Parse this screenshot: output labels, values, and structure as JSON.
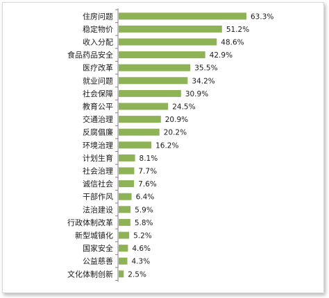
{
  "chart_data": {
    "type": "bar",
    "orientation": "horizontal",
    "categories": [
      "住房问题",
      "稳定物价",
      "收入分配",
      "食品药品安全",
      "医疗改革",
      "就业问题",
      "社会保障",
      "教育公平",
      "交通治理",
      "反腐倡廉",
      "环境治理",
      "计划生育",
      "社会治理",
      "诚信社会",
      "干部作风",
      "法治建设",
      "行政体制改革",
      "新型城镇化",
      "国家安全",
      "公益慈善",
      "文化体制创新"
    ],
    "values": [
      63.3,
      51.2,
      48.6,
      42.9,
      35.5,
      34.2,
      30.9,
      24.5,
      20.9,
      20.2,
      16.2,
      8.1,
      7.7,
      7.6,
      6.4,
      5.9,
      5.8,
      5.2,
      4.6,
      4.3,
      2.5
    ],
    "value_labels": [
      "63.3%",
      "51.2%",
      "48.6%",
      "42.9%",
      "35.5%",
      "34.2%",
      "30.9%",
      "24.5%",
      "20.9%",
      "20.2%",
      "16.2%",
      "8.1%",
      "7.7%",
      "7.6%",
      "6.4%",
      "5.9%",
      "5.8%",
      "5.2%",
      "4.6%",
      "4.3%",
      "2.5%"
    ],
    "unit": "%",
    "bar_color": "#8db356",
    "axis_color": "#7f7f7f",
    "title": "",
    "xlabel": "",
    "ylabel": "",
    "xlim": [
      0,
      63.3
    ],
    "grid": false,
    "legend": "none"
  }
}
